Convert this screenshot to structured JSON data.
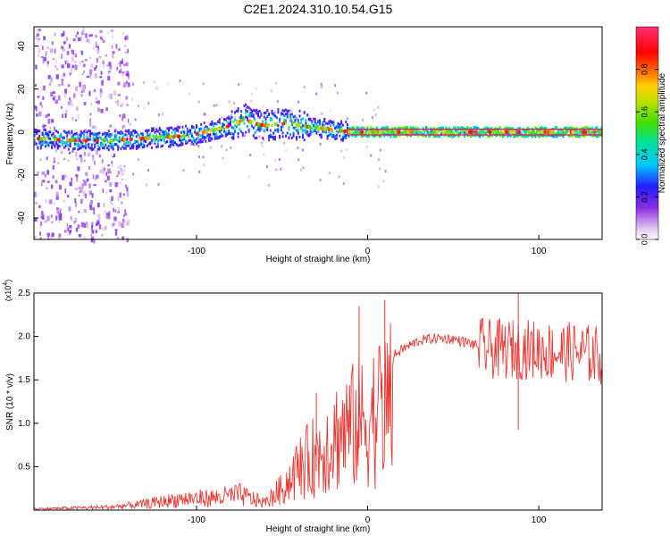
{
  "title": "C2E1.2024.310.10.54.G15",
  "colors": {
    "snr_line": "#e83a35",
    "ridge_outline": "#e01060",
    "axis": "#000000"
  },
  "chart_data": [
    {
      "type": "heatmap",
      "panel": "spectrogram",
      "xlabel": "Height of straight line (km)",
      "ylabel": "Frequency (Hz)",
      "xlim": [
        -195,
        137
      ],
      "ylim": [
        -50,
        49
      ],
      "xticks": [
        -100,
        0,
        100
      ],
      "yticks": [
        -40,
        -20,
        0,
        20,
        40
      ],
      "colorbar": {
        "label": "Normalized spectral amplitude",
        "range": [
          0,
          1
        ],
        "ticks": [
          0.0,
          0.2,
          0.4,
          0.6,
          0.8
        ]
      },
      "ridge": {
        "description_points": [
          [
            -195,
            -3
          ],
          [
            -170,
            -4
          ],
          [
            -150,
            -4
          ],
          [
            -130,
            -3
          ],
          [
            -110,
            -2
          ],
          [
            -100,
            -1
          ],
          [
            -90,
            1
          ],
          [
            -80,
            3
          ],
          [
            -72,
            6
          ],
          [
            -66,
            4
          ],
          [
            -60,
            3
          ],
          [
            -50,
            4
          ],
          [
            -40,
            3
          ],
          [
            -30,
            2
          ],
          [
            -20,
            1
          ],
          [
            -10,
            0
          ],
          [
            0,
            0
          ],
          [
            50,
            0
          ],
          [
            100,
            0
          ],
          [
            137,
            0
          ]
        ],
        "stable_from_km": -12,
        "mean_amplitude": 0.55
      }
    },
    {
      "type": "line",
      "panel": "snr",
      "xlabel": "Height of straight line (km)",
      "ylabel": "SNR (10 * v/v)",
      "y_multiplier": "(x10",
      "y_multiplier_exp": "4",
      "y_multiplier_close": ")",
      "xlim": [
        -195,
        137
      ],
      "ylim": [
        0,
        2.5
      ],
      "xticks": [
        -100,
        0,
        100
      ],
      "yticks": [
        0.5,
        1.0,
        1.5,
        2.0,
        2.5
      ],
      "series": [
        {
          "envelope": [
            [
              -195,
              0.02
            ],
            [
              -150,
              0.05
            ],
            [
              -130,
              0.1
            ],
            [
              -110,
              0.18
            ],
            [
              -90,
              0.2
            ],
            [
              -75,
              0.25
            ],
            [
              -60,
              0.12
            ],
            [
              -50,
              0.35
            ],
            [
              -40,
              0.7
            ],
            [
              -30,
              0.9
            ],
            [
              -20,
              1.2
            ],
            [
              -10,
              1.35
            ],
            [
              0,
              1.5
            ],
            [
              5,
              1.6
            ],
            [
              10,
              1.7
            ],
            [
              20,
              1.85
            ],
            [
              30,
              1.95
            ],
            [
              40,
              1.98
            ],
            [
              50,
              1.97
            ],
            [
              60,
              1.92
            ],
            [
              70,
              1.85
            ],
            [
              80,
              1.85
            ],
            [
              90,
              1.85
            ],
            [
              100,
              1.85
            ],
            [
              110,
              1.82
            ],
            [
              120,
              1.82
            ],
            [
              137,
              1.78
            ]
          ],
          "peak_points": [
            [
              -30,
              1.35
            ],
            [
              -5,
              2.35
            ],
            [
              10,
              2.42
            ],
            [
              88,
              2.5
            ]
          ]
        }
      ]
    }
  ]
}
